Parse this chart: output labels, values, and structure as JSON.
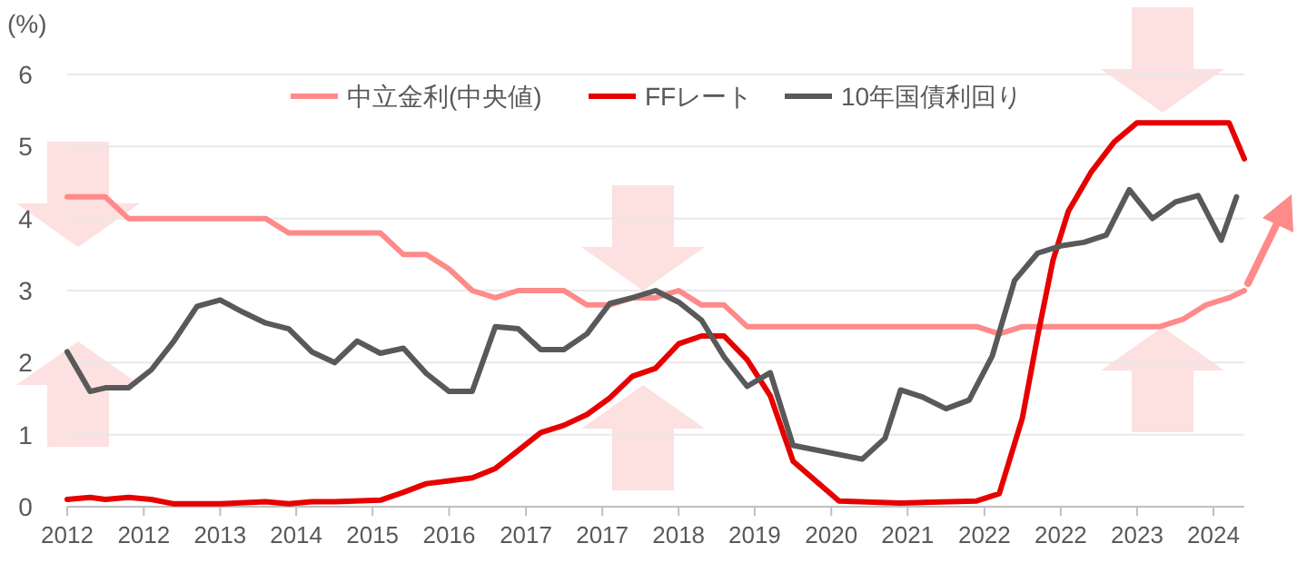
{
  "chart_data": {
    "type": "line",
    "ylabel": "(%)",
    "xlim": [
      "2012-01",
      "2024-11"
    ],
    "xticks": [
      {
        "value": "2012-01",
        "label": "2012"
      },
      {
        "value": "2012-11",
        "label": "2012"
      },
      {
        "value": "2013-09",
        "label": "2013"
      },
      {
        "value": "2014-07",
        "label": "2014"
      },
      {
        "value": "2015-05",
        "label": "2015"
      },
      {
        "value": "2016-03",
        "label": "2016"
      },
      {
        "value": "2017-01",
        "label": "2017"
      },
      {
        "value": "2017-11",
        "label": "2017"
      },
      {
        "value": "2018-09",
        "label": "2018"
      },
      {
        "value": "2019-07",
        "label": "2019"
      },
      {
        "value": "2020-05",
        "label": "2020"
      },
      {
        "value": "2021-03",
        "label": "2021"
      },
      {
        "value": "2022-01",
        "label": "2022"
      },
      {
        "value": "2022-11",
        "label": "2022"
      },
      {
        "value": "2023-09",
        "label": "2023"
      },
      {
        "value": "2024-07",
        "label": "2024"
      }
    ],
    "ylim": [
      0,
      6
    ],
    "yticks": [
      0,
      1,
      2,
      3,
      4,
      5,
      6
    ],
    "grid": "y",
    "legend": "top",
    "marker": "none",
    "line_style": "solid",
    "series": [
      {
        "name": "中立金利(中央値)",
        "color": "#ff8a8a",
        "x": [
          "2012-01",
          "2012-06",
          "2012-09",
          "2014-03",
          "2014-06",
          "2015-06",
          "2015-09",
          "2015-12",
          "2016-03",
          "2016-06",
          "2016-09",
          "2016-12",
          "2017-06",
          "2017-09",
          "2017-12",
          "2018-03",
          "2018-06",
          "2018-09",
          "2018-12",
          "2019-03",
          "2019-06",
          "2021-12",
          "2022-03",
          "2022-06",
          "2023-12",
          "2024-03",
          "2024-06",
          "2024-09",
          "2024-11"
        ],
        "values": [
          4.3,
          4.3,
          4.0,
          4.0,
          3.8,
          3.8,
          3.5,
          3.5,
          3.3,
          3.0,
          2.9,
          3.0,
          3.0,
          2.8,
          2.8,
          2.9,
          2.9,
          3.0,
          2.8,
          2.8,
          2.5,
          2.5,
          2.4,
          2.5,
          2.5,
          2.6,
          2.8,
          2.9,
          3.0
        ]
      },
      {
        "name": "FFレート",
        "color": "#e60000",
        "x": [
          "2012-01",
          "2012-04",
          "2012-06",
          "2012-09",
          "2012-12",
          "2013-03",
          "2013-09",
          "2014-03",
          "2014-06",
          "2014-09",
          "2014-12",
          "2015-06",
          "2015-09",
          "2015-12",
          "2016-03",
          "2016-06",
          "2016-09",
          "2016-12",
          "2017-03",
          "2017-06",
          "2017-09",
          "2017-12",
          "2018-03",
          "2018-06",
          "2018-09",
          "2018-12",
          "2019-03",
          "2019-06",
          "2019-09",
          "2019-12",
          "2020-06",
          "2021-02",
          "2021-12",
          "2022-03",
          "2022-06",
          "2022-08",
          "2022-10",
          "2022-12",
          "2023-03",
          "2023-06",
          "2023-09",
          "2024-09",
          "2024-11"
        ],
        "values": [
          0.1,
          0.13,
          0.1,
          0.13,
          0.1,
          0.04,
          0.04,
          0.07,
          0.04,
          0.07,
          0.07,
          0.09,
          0.2,
          0.32,
          0.36,
          0.4,
          0.53,
          0.78,
          1.03,
          1.13,
          1.28,
          1.51,
          1.81,
          1.92,
          2.26,
          2.37,
          2.37,
          2.04,
          1.54,
          0.63,
          0.08,
          0.05,
          0.08,
          0.18,
          1.23,
          2.37,
          3.42,
          4.1,
          4.64,
          5.06,
          5.33,
          5.33,
          4.83
        ]
      },
      {
        "name": "10年国債利回り",
        "color": "#595959",
        "x": [
          "2012-01",
          "2012-04",
          "2012-06",
          "2012-09",
          "2012-12",
          "2013-03",
          "2013-06",
          "2013-09",
          "2013-12",
          "2014-03",
          "2014-06",
          "2014-09",
          "2014-12",
          "2015-03",
          "2015-06",
          "2015-09",
          "2015-12",
          "2016-03",
          "2016-06",
          "2016-09",
          "2016-12",
          "2017-03",
          "2017-06",
          "2017-09",
          "2017-12",
          "2018-03",
          "2018-06",
          "2018-09",
          "2018-12",
          "2019-03",
          "2019-06",
          "2019-09",
          "2019-12",
          "2020-09",
          "2020-12",
          "2021-02",
          "2021-05",
          "2021-08",
          "2021-11",
          "2022-02",
          "2022-05",
          "2022-08",
          "2022-11",
          "2023-02",
          "2023-05",
          "2023-08",
          "2023-11",
          "2024-02",
          "2024-05",
          "2024-08",
          "2024-10"
        ],
        "values": [
          2.15,
          1.6,
          1.65,
          1.65,
          1.9,
          2.3,
          2.78,
          2.87,
          2.7,
          2.55,
          2.47,
          2.15,
          2.0,
          2.3,
          2.13,
          2.2,
          1.85,
          1.6,
          1.6,
          2.5,
          2.47,
          2.18,
          2.18,
          2.4,
          2.82,
          2.9,
          3.0,
          2.84,
          2.59,
          2.08,
          1.67,
          1.86,
          0.85,
          0.66,
          0.95,
          1.62,
          1.52,
          1.36,
          1.48,
          2.09,
          3.14,
          3.52,
          3.62,
          3.67,
          3.77,
          4.4,
          4.0,
          4.23,
          4.32,
          3.7,
          4.3
        ]
      }
    ]
  }
}
